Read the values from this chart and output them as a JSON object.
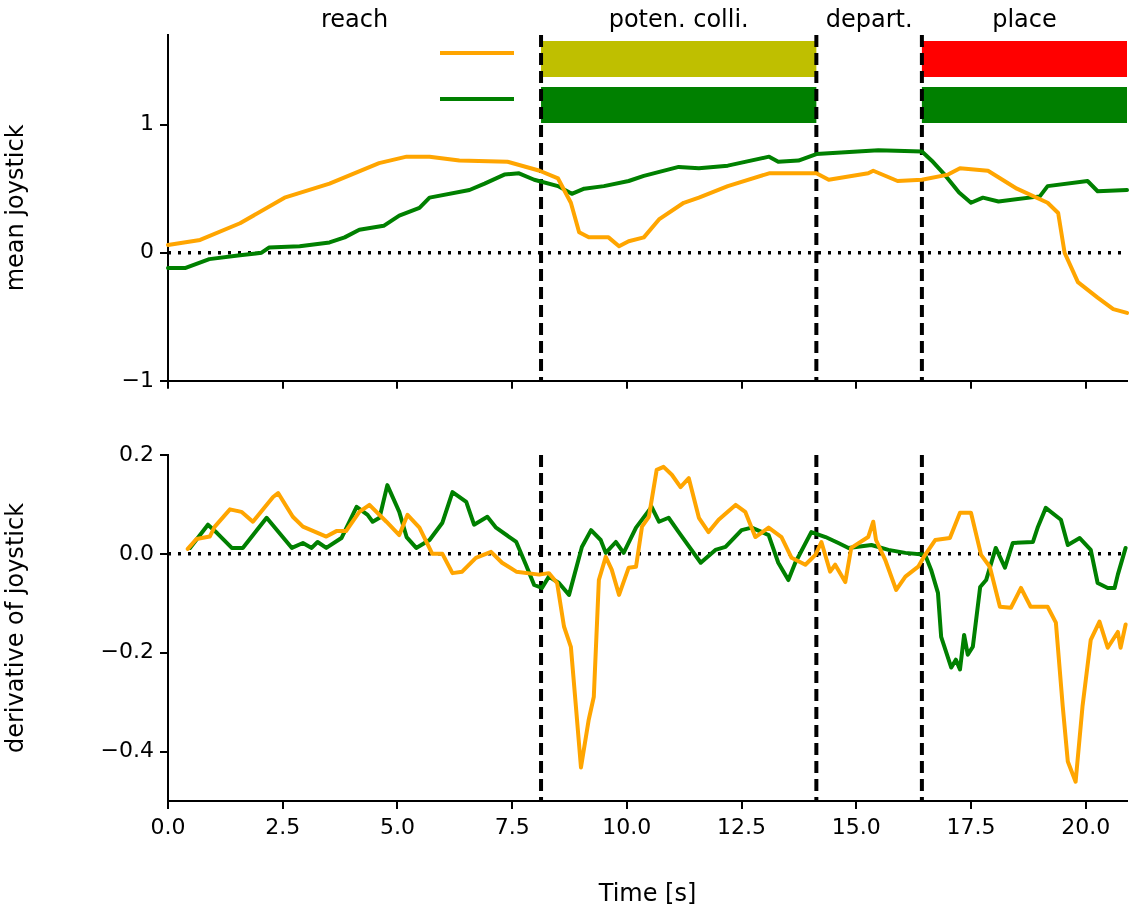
{
  "chart_data": [
    {
      "type": "line",
      "ylabel": "mean joystick",
      "xlim": [
        0,
        20.9
      ],
      "xticks": [
        {
          "value": 0,
          "label": null
        },
        {
          "value": 2.5,
          "label": null
        },
        {
          "value": 5,
          "label": null
        },
        {
          "value": 7.5,
          "label": null
        },
        {
          "value": 10,
          "label": null
        },
        {
          "value": 12.5,
          "label": null
        },
        {
          "value": 15,
          "label": null
        },
        {
          "value": 17.5,
          "label": null
        },
        {
          "value": 20,
          "label": null
        }
      ],
      "ylim": [
        -1,
        1.7
      ],
      "yticks": [
        {
          "value": -1,
          "label": "−1"
        },
        0,
        1
      ],
      "tick_labels": "y",
      "annotations": [
        "reach",
        "poten. colli.",
        "depart.",
        "place"
      ],
      "bands": [
        {
          "axis": "x",
          "from": 8.13,
          "to": 14.13,
          "color": "#bfbf00"
        },
        {
          "axis": "x",
          "from": 8.13,
          "to": 14.13,
          "color": "#008000"
        },
        {
          "axis": "x",
          "from": 16.43,
          "to": 20.9,
          "color": "#ff0000"
        },
        {
          "axis": "x",
          "from": 16.43,
          "to": 20.9,
          "color": "#008000"
        }
      ],
      "ref_lines": [
        {
          "axis": "x",
          "value": 8.13,
          "line_style": "dashed"
        },
        {
          "axis": "x",
          "value": 14.13,
          "line_style": "dashed"
        },
        {
          "axis": "x",
          "value": 16.43,
          "line_style": "dashed"
        },
        {
          "axis": "y",
          "value": 0,
          "line_style": "dotted"
        }
      ],
      "series": [
        {
          "color": "#ffa500",
          "x": [
            0,
            0.7,
            1.57,
            2.54,
            3.52,
            4.6,
            5.2,
            5.7,
            6.35,
            7.4,
            8.1,
            8.5,
            8.78,
            8.96,
            9.17,
            9.6,
            9.83,
            10.04,
            10.37,
            10.7,
            11.24,
            11.57,
            12.2,
            13.1,
            14.13,
            14.4,
            15.26,
            15.37,
            15.9,
            16.43,
            17.0,
            17.26,
            17.87,
            18.5,
            19.17,
            19.4,
            19.54,
            19.83,
            20.26,
            20.6,
            20.9
          ],
          "values": [
            0.06,
            0.1,
            0.23,
            0.43,
            0.54,
            0.7,
            0.75,
            0.75,
            0.72,
            0.71,
            0.64,
            0.58,
            0.39,
            0.16,
            0.12,
            0.12,
            0.05,
            0.09,
            0.12,
            0.26,
            0.39,
            0.43,
            0.52,
            0.62,
            0.62,
            0.57,
            0.62,
            0.64,
            0.56,
            0.57,
            0.61,
            0.66,
            0.64,
            0.5,
            0.39,
            0.31,
            0,
            -0.23,
            -0.35,
            -0.44,
            -0.47
          ]
        },
        {
          "color": "#008000",
          "x": [
            0,
            0.37,
            0.9,
            1.57,
            2.04,
            2.2,
            2.87,
            3.52,
            3.85,
            4.17,
            4.7,
            5.04,
            5.48,
            5.7,
            6.57,
            6.9,
            7.33,
            7.65,
            7.98,
            8.5,
            8.8,
            9.07,
            9.5,
            10.04,
            10.37,
            11.13,
            11.57,
            12.2,
            13.1,
            13.3,
            13.74,
            14.13,
            15.48,
            16.43,
            16.67,
            16.9,
            17.24,
            17.5,
            17.76,
            18.1,
            19.0,
            19.17,
            20.04,
            20.26,
            20.9
          ],
          "values": [
            -0.12,
            -0.12,
            -0.05,
            -0.02,
            0,
            0.04,
            0.05,
            0.08,
            0.12,
            0.18,
            0.21,
            0.29,
            0.35,
            0.43,
            0.49,
            0.54,
            0.61,
            0.62,
            0.57,
            0.52,
            0.46,
            0.5,
            0.52,
            0.56,
            0.6,
            0.67,
            0.66,
            0.68,
            0.75,
            0.71,
            0.72,
            0.77,
            0.8,
            0.79,
            0.71,
            0.62,
            0.47,
            0.39,
            0.43,
            0.4,
            0.44,
            0.52,
            0.56,
            0.48,
            0.49
          ]
        }
      ]
    },
    {
      "type": "line",
      "xlabel": "Time [s]",
      "ylabel": "derivative of joystick",
      "xlim": [
        0,
        20.9
      ],
      "xticks": [
        {
          "value": 0,
          "label": "0.0"
        },
        {
          "value": 2.5,
          "label": "2.5"
        },
        {
          "value": 5,
          "label": "5.0"
        },
        {
          "value": 7.5,
          "label": "7.5"
        },
        {
          "value": 10,
          "label": "10.0"
        },
        {
          "value": 12.5,
          "label": "12.5"
        },
        {
          "value": 15,
          "label": "15.0"
        },
        {
          "value": 17.5,
          "label": "17.5"
        },
        {
          "value": 20,
          "label": "20.0"
        }
      ],
      "ylim": [
        -0.5,
        0.2
      ],
      "yticks": [
        {
          "value": -0.4,
          "label": "−0.4"
        },
        {
          "value": -0.2,
          "label": "−0.2"
        },
        {
          "value": 0,
          "label": "0.0"
        },
        {
          "value": 0.2,
          "label": "0.2"
        }
      ],
      "ref_lines": [
        {
          "axis": "x",
          "value": 8.13,
          "line_style": "dashed"
        },
        {
          "axis": "x",
          "value": 14.13,
          "line_style": "dashed"
        },
        {
          "axis": "x",
          "value": 16.43,
          "line_style": "dashed"
        },
        {
          "axis": "y",
          "value": 0,
          "line_style": "dotted"
        }
      ],
      "series": [
        {
          "color": "#ffa500",
          "x": [
            0.43,
            0.62,
            0.91,
            1.02,
            1.35,
            1.6,
            1.85,
            2.29,
            2.4,
            2.72,
            2.94,
            3.45,
            3.67,
            3.88,
            4.17,
            4.39,
            4.76,
            5.04,
            5.22,
            5.48,
            5.76,
            5.98,
            6.2,
            6.41,
            6.71,
            7.04,
            7.28,
            7.59,
            8.09,
            8.3,
            8.48,
            8.63,
            8.78,
            8.89,
            9.0,
            9.17,
            9.28,
            9.39,
            9.54,
            9.67,
            9.83,
            10.04,
            10.2,
            10.33,
            10.48,
            10.65,
            10.8,
            10.98,
            11.17,
            11.35,
            11.57,
            11.78,
            12.0,
            12.37,
            12.58,
            12.8,
            13.09,
            13.37,
            13.59,
            13.89,
            14.11,
            14.24,
            14.43,
            14.54,
            14.76,
            14.89,
            15.26,
            15.37,
            15.43,
            15.63,
            15.87,
            16.07,
            16.35,
            16.5,
            16.72,
            17.04,
            17.26,
            17.5,
            17.72,
            17.91,
            18.13,
            18.37,
            18.59,
            18.8,
            19.17,
            19.35,
            19.5,
            19.61,
            19.78,
            19.93,
            20.11,
            20.3,
            20.48,
            20.7,
            20.76,
            20.87
          ],
          "values": [
            0.01,
            0.03,
            0.035,
            0.055,
            0.09,
            0.085,
            0.065,
            0.115,
            0.123,
            0.075,
            0.055,
            0.035,
            0.046,
            0.046,
            0.085,
            0.099,
            0.065,
            0.038,
            0.079,
            0.053,
            0,
            0,
            -0.039,
            -0.036,
            -0.008,
            0.004,
            -0.018,
            -0.036,
            -0.042,
            -0.039,
            -0.059,
            -0.147,
            -0.188,
            -0.309,
            -0.432,
            -0.335,
            -0.289,
            -0.053,
            -0.006,
            -0.032,
            -0.083,
            -0.028,
            -0.026,
            0.055,
            0.075,
            0.17,
            0.176,
            0.16,
            0.135,
            0.153,
            0.073,
            0.044,
            0.069,
            0.099,
            0.085,
            0.034,
            0.053,
            0.034,
            -0.008,
            -0.022,
            -0.002,
            0.024,
            -0.036,
            -0.022,
            -0.057,
            0.012,
            0.034,
            0.065,
            0.028,
            -0.012,
            -0.073,
            -0.046,
            -0.026,
            -0.002,
            0.028,
            0.032,
            0.083,
            0.083,
            -0.002,
            -0.026,
            -0.107,
            -0.109,
            -0.069,
            -0.107,
            -0.107,
            -0.139,
            -0.309,
            -0.42,
            -0.461,
            -0.309,
            -0.174,
            -0.137,
            -0.19,
            -0.158,
            -0.19,
            -0.143
          ]
        },
        {
          "color": "#008000",
          "x": [
            0.48,
            0.87,
            1.07,
            1.39,
            1.63,
            2.15,
            2.7,
            2.94,
            3.13,
            3.26,
            3.45,
            3.78,
            4.11,
            4.35,
            4.46,
            4.61,
            4.78,
            5.04,
            5.2,
            5.41,
            5.7,
            5.98,
            6.2,
            6.5,
            6.67,
            6.96,
            7.15,
            7.59,
            7.8,
            7.98,
            8.15,
            8.3,
            8.52,
            8.74,
            9.02,
            9.22,
            9.43,
            9.54,
            9.76,
            9.93,
            10.2,
            10.54,
            10.7,
            10.91,
            11.13,
            11.61,
            11.93,
            12.15,
            12.5,
            12.72,
            13.09,
            13.3,
            13.52,
            13.67,
            14.02,
            14.33,
            14.61,
            14.83,
            15.33,
            15.7,
            16.07,
            16.5,
            16.63,
            16.78,
            16.85,
            17.07,
            17.17,
            17.26,
            17.35,
            17.43,
            17.54,
            17.7,
            17.83,
            18.04,
            18.24,
            18.41,
            18.85,
            18.96,
            19.13,
            19.46,
            19.61,
            19.87,
            20.11,
            20.26,
            20.48,
            20.63,
            20.7,
            20.87
          ],
          "values": [
            0.012,
            0.059,
            0.042,
            0.012,
            0.012,
            0.073,
            0.012,
            0.022,
            0.012,
            0.024,
            0.012,
            0.032,
            0.095,
            0.079,
            0.065,
            0.073,
            0.139,
            0.085,
            0.034,
            0.012,
            0.028,
            0.063,
            0.125,
            0.105,
            0.059,
            0.075,
            0.053,
            0.024,
            -0.022,
            -0.063,
            -0.069,
            -0.046,
            -0.059,
            -0.083,
            0.014,
            0.048,
            0.028,
            0.002,
            0.024,
            0.002,
            0.053,
            0.095,
            0.065,
            0.073,
            0.044,
            -0.018,
            0.008,
            0.014,
            0.048,
            0.053,
            0.038,
            -0.018,
            -0.053,
            -0.018,
            0.044,
            0.034,
            0.022,
            0.012,
            0.018,
            0.008,
            0.002,
            -0.002,
            -0.032,
            -0.079,
            -0.168,
            -0.23,
            -0.214,
            -0.234,
            -0.164,
            -0.204,
            -0.188,
            -0.067,
            -0.053,
            0.012,
            -0.028,
            0.022,
            0.024,
            0.055,
            0.093,
            0.069,
            0.018,
            0.032,
            0.008,
            -0.059,
            -0.069,
            -0.069,
            -0.042,
            0.012
          ]
        }
      ]
    }
  ]
}
